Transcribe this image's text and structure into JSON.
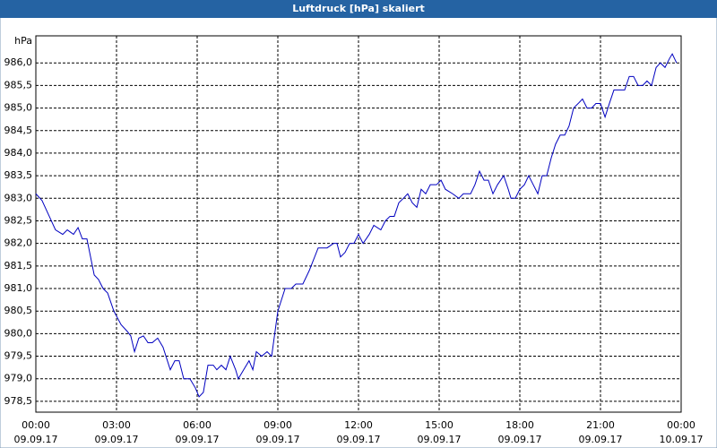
{
  "chart_data": {
    "type": "line",
    "title": "Luftdruck [hPa] skaliert",
    "y_unit": "hPa",
    "x": [
      0,
      0.23,
      0.5,
      0.73,
      1,
      1.17,
      1.4,
      1.57,
      1.73,
      1.9,
      2.17,
      2.33,
      2.5,
      2.67,
      2.9,
      3.17,
      3.4,
      3.53,
      3.67,
      3.83,
      4,
      4.17,
      4.33,
      4.53,
      4.73,
      5,
      5.17,
      5.33,
      5.5,
      5.73,
      5.93,
      6.07,
      6.23,
      6.4,
      6.6,
      6.73,
      6.9,
      7.07,
      7.23,
      7.43,
      7.53,
      7.73,
      7.93,
      8.07,
      8.2,
      8.4,
      8.6,
      8.77,
      9,
      9.27,
      9.5,
      9.67,
      9.93,
      10.17,
      10.5,
      10.83,
      11.07,
      11.2,
      11.33,
      11.5,
      11.67,
      11.83,
      12,
      12.17,
      12.4,
      12.57,
      12.83,
      13,
      13.17,
      13.33,
      13.5,
      13.67,
      13.83,
      14,
      14.17,
      14.33,
      14.5,
      14.67,
      14.9,
      15.07,
      15.23,
      15.5,
      15.73,
      15.9,
      16.17,
      16.33,
      16.5,
      16.67,
      16.83,
      17,
      17.17,
      17.4,
      17.57,
      17.67,
      17.83,
      18,
      18.17,
      18.33,
      18.5,
      18.67,
      18.83,
      19,
      19.17,
      19.33,
      19.5,
      19.67,
      19.83,
      20,
      20.17,
      20.33,
      20.5,
      20.67,
      20.83,
      21,
      21.17,
      21.33,
      21.5,
      21.73,
      21.9,
      22.07,
      22.23,
      22.4,
      22.57,
      22.73,
      22.9,
      23.07,
      23.23,
      23.4,
      23.57,
      23.67,
      23.83
    ],
    "series": [
      {
        "name": "Luftdruck",
        "color": "#0000c0",
        "values": [
          983.1,
          982.95,
          982.6,
          982.3,
          982.2,
          982.3,
          982.2,
          982.35,
          982.1,
          982.1,
          981.3,
          981.2,
          981.0,
          980.9,
          980.5,
          980.2,
          980.05,
          979.95,
          979.6,
          979.9,
          979.95,
          979.8,
          979.8,
          979.9,
          979.7,
          979.2,
          979.4,
          979.4,
          979.0,
          979.0,
          978.8,
          978.6,
          978.7,
          979.3,
          979.3,
          979.2,
          979.3,
          979.2,
          979.5,
          979.2,
          979.0,
          979.2,
          979.4,
          979.2,
          979.6,
          979.5,
          979.6,
          979.5,
          980.5,
          981.0,
          981.0,
          981.1,
          981.1,
          981.4,
          981.9,
          981.9,
          982.0,
          982.0,
          981.7,
          981.8,
          982.0,
          982.0,
          982.2,
          982.0,
          982.2,
          982.4,
          982.3,
          982.5,
          982.6,
          982.6,
          982.9,
          983.0,
          983.1,
          982.9,
          982.8,
          983.2,
          983.1,
          983.3,
          983.3,
          983.4,
          983.2,
          983.1,
          983.0,
          983.1,
          983.1,
          983.3,
          983.6,
          983.4,
          983.4,
          983.1,
          983.3,
          983.5,
          983.2,
          983.0,
          983.0,
          983.2,
          983.3,
          983.5,
          983.3,
          983.1,
          983.5,
          983.5,
          983.9,
          984.2,
          984.4,
          984.4,
          984.6,
          985.0,
          985.1,
          985.2,
          985.0,
          985.0,
          985.1,
          985.1,
          984.8,
          985.1,
          985.4,
          985.4,
          985.4,
          985.7,
          985.7,
          985.5,
          985.5,
          985.6,
          985.5,
          985.9,
          986.0,
          985.9,
          986.1,
          986.2,
          986.0
        ]
      }
    ],
    "xlim": [
      0,
      24
    ],
    "xticks": [
      {
        "value": 0,
        "label": "00:00"
      },
      {
        "value": 3,
        "label": "03:00"
      },
      {
        "value": 6,
        "label": "06:00"
      },
      {
        "value": 9,
        "label": "09:00"
      },
      {
        "value": 12,
        "label": "12:00"
      },
      {
        "value": 15,
        "label": "15:00"
      },
      {
        "value": 18,
        "label": "18:00"
      },
      {
        "value": 21,
        "label": "21:00"
      },
      {
        "value": 24,
        "label": "00:00"
      }
    ],
    "xtick_dates": [
      "09.09.17",
      "09.09.17",
      "09.09.17",
      "09.09.17",
      "09.09.17",
      "09.09.17",
      "09.09.17",
      "09.09.17",
      "10.09.17"
    ],
    "ylim": [
      978.26,
      986.6
    ],
    "yticks": [
      {
        "value": 978.5,
        "label": "978,5"
      },
      {
        "value": 979,
        "label": "979,0"
      },
      {
        "value": 979.5,
        "label": "979,5"
      },
      {
        "value": 980,
        "label": "980,0"
      },
      {
        "value": 980.5,
        "label": "980,5"
      },
      {
        "value": 981,
        "label": "981,0"
      },
      {
        "value": 981.5,
        "label": "981,5"
      },
      {
        "value": 982,
        "label": "982,0"
      },
      {
        "value": 982.5,
        "label": "982,5"
      },
      {
        "value": 983,
        "label": "983,0"
      },
      {
        "value": 983.5,
        "label": "983,5"
      },
      {
        "value": 984,
        "label": "984,0"
      },
      {
        "value": 984.5,
        "label": "984,5"
      },
      {
        "value": 985,
        "label": "985,0"
      },
      {
        "value": 985.5,
        "label": "985,5"
      },
      {
        "value": 986,
        "label": "986,0"
      }
    ],
    "grid": true
  }
}
